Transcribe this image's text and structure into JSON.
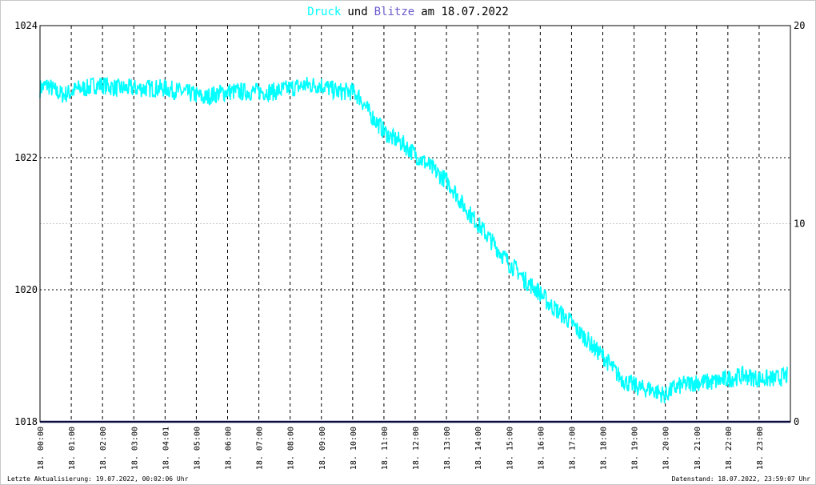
{
  "title": {
    "word1": "Druck",
    "word2": "und",
    "word3": "Blitze",
    "word4": "am 18.07.2022",
    "colors": {
      "druck": "#00ffff",
      "und": "#000000",
      "blitze": "#6a5acd",
      "date": "#000000"
    }
  },
  "footer": {
    "left": "Letzte Aktualisierung: 19.07.2022, 00:02:06 Uhr",
    "right": "Datenstand: 18.07.2022, 23:59:07 Uhr"
  },
  "chart_data": {
    "type": "line",
    "x_unit": "time of day (hours)",
    "xlim": [
      0,
      24
    ],
    "x_tick_labels": [
      "18. 00:00",
      "18. 01:00",
      "18. 02:00",
      "18. 03:00",
      "18. 04:01",
      "18. 05:00",
      "18. 06:00",
      "18. 07:00",
      "18. 08:00",
      "18. 09:00",
      "18. 10:00",
      "18. 11:00",
      "18. 12:00",
      "18. 13:00",
      "18. 14:00",
      "18. 15:00",
      "18. 16:00",
      "18. 17:00",
      "18. 18:00",
      "18. 19:00",
      "18. 20:00",
      "18. 21:00",
      "18. 22:00",
      "18. 23:00"
    ],
    "left_axis": {
      "ylim": [
        1018,
        1024
      ],
      "tick_labels": [
        "1018",
        "1020",
        "1022",
        "1024"
      ]
    },
    "right_axis": {
      "ylim": [
        0,
        20
      ],
      "tick_labels": [
        "0",
        "10",
        "20"
      ]
    },
    "grid": true,
    "series": [
      {
        "axis": "left",
        "color": "#00ffff",
        "x": [
          0,
          0.25,
          0.5,
          0.75,
          1,
          1.25,
          1.5,
          1.75,
          2,
          2.5,
          3,
          3.5,
          4,
          4.5,
          5,
          5.25,
          5.5,
          6,
          6.5,
          7,
          7.5,
          8,
          8.5,
          9,
          9.5,
          10,
          10.25,
          10.5,
          10.75,
          11,
          11.25,
          11.5,
          11.75,
          12,
          12.25,
          12.5,
          12.75,
          13,
          13.25,
          13.5,
          13.75,
          14,
          14.25,
          14.5,
          14.75,
          15,
          15.25,
          15.5,
          15.75,
          16,
          16.25,
          16.5,
          16.75,
          17,
          17.25,
          17.5,
          17.75,
          18,
          18.25,
          18.5,
          18.75,
          19,
          19.25,
          19.5,
          19.75,
          20,
          20.25,
          20.5,
          21,
          21.5,
          22,
          22.5,
          23,
          23.5,
          23.9
        ],
        "y": [
          1023.05,
          1023.1,
          1023.0,
          1022.95,
          1023.0,
          1023.05,
          1023.05,
          1023.1,
          1023.1,
          1023.05,
          1023.05,
          1023.05,
          1023.05,
          1023.0,
          1022.95,
          1022.9,
          1022.95,
          1023.0,
          1023.0,
          1023.0,
          1023.0,
          1023.05,
          1023.1,
          1023.1,
          1023.0,
          1023.0,
          1022.9,
          1022.7,
          1022.55,
          1022.4,
          1022.3,
          1022.25,
          1022.15,
          1022.05,
          1021.95,
          1021.85,
          1021.75,
          1021.65,
          1021.5,
          1021.3,
          1021.15,
          1021.0,
          1020.85,
          1020.7,
          1020.55,
          1020.4,
          1020.3,
          1020.15,
          1020.05,
          1019.95,
          1019.8,
          1019.7,
          1019.6,
          1019.5,
          1019.35,
          1019.25,
          1019.1,
          1019.0,
          1018.85,
          1018.7,
          1018.6,
          1018.55,
          1018.5,
          1018.5,
          1018.45,
          1018.4,
          1018.5,
          1018.55,
          1018.6,
          1018.6,
          1018.65,
          1018.7,
          1018.65,
          1018.65,
          1018.7
        ]
      },
      {
        "axis": "right",
        "color": "#191970",
        "x": [
          0,
          24
        ],
        "y": [
          0,
          0
        ]
      }
    ]
  }
}
